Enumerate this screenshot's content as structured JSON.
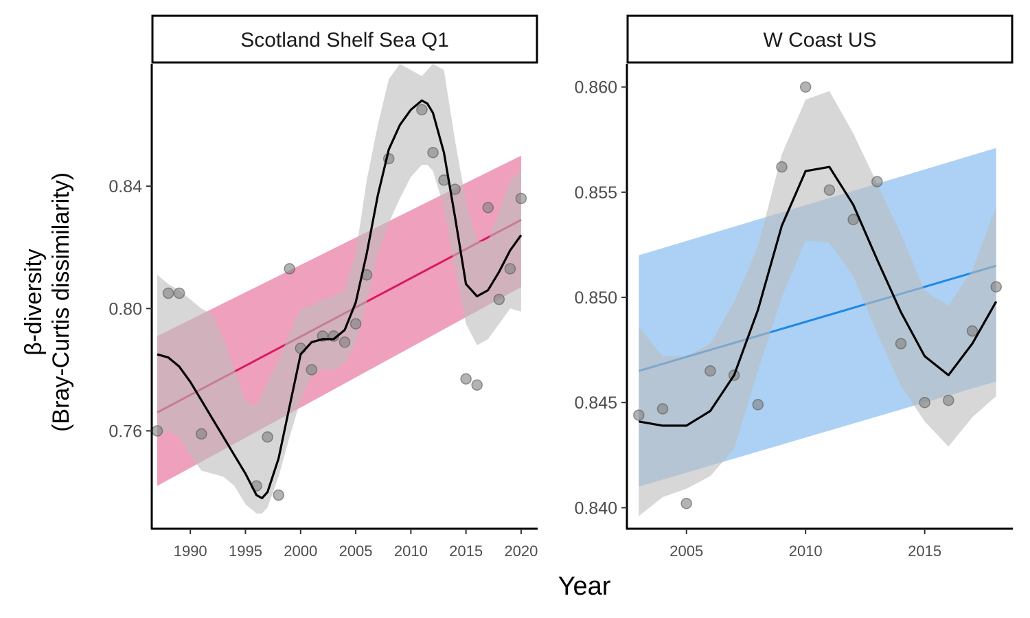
{
  "figure": {
    "xlabel": "Year",
    "ylabel_line1": "β-diversity",
    "ylabel_line2": "(Bray-Curtis dissimilarity)"
  },
  "chart_data": [
    {
      "type": "scatter",
      "facet": "Scotland Shelf Sea Q1",
      "xlim": [
        1986.5,
        2021.5
      ],
      "ylim": [
        0.728,
        0.88
      ],
      "xticks": [
        1990,
        1995,
        2000,
        2005,
        2010,
        2015,
        2020
      ],
      "yticks": [
        0.76,
        0.8,
        0.84
      ],
      "ytick_labels": [
        "0.76",
        "0.80",
        "0.84"
      ],
      "colors": {
        "linear_fit": "#d81b60",
        "linear_band": "#ec8fb0",
        "smooth_band": "#bdbdbd",
        "points": "#808080"
      },
      "points": [
        [
          1987,
          0.76
        ],
        [
          1988,
          0.805
        ],
        [
          1989,
          0.805
        ],
        [
          1991,
          0.759
        ],
        [
          1996,
          0.742
        ],
        [
          1997,
          0.758
        ],
        [
          1998,
          0.739
        ],
        [
          1999,
          0.813
        ],
        [
          2000,
          0.787
        ],
        [
          2001,
          0.78
        ],
        [
          2002,
          0.791
        ],
        [
          2003,
          0.791
        ],
        [
          2004,
          0.789
        ],
        [
          2005,
          0.795
        ],
        [
          2006,
          0.811
        ],
        [
          2008,
          0.849
        ],
        [
          2011,
          0.865
        ],
        [
          2012,
          0.851
        ],
        [
          2013,
          0.842
        ],
        [
          2014,
          0.839
        ],
        [
          2015,
          0.777
        ],
        [
          2016,
          0.775
        ],
        [
          2017,
          0.833
        ],
        [
          2018,
          0.803
        ],
        [
          2019,
          0.813
        ],
        [
          2020,
          0.836
        ]
      ],
      "linear_fit": {
        "x": [
          1987,
          2020
        ],
        "y": [
          0.766,
          0.829
        ],
        "lower": [
          0.742,
          0.807
        ],
        "upper": [
          0.791,
          0.85
        ]
      },
      "smooth": {
        "x": [
          1987,
          1988,
          1989,
          1990,
          1991,
          1992,
          1993,
          1994,
          1995,
          1996,
          1996.5,
          1997,
          1998,
          1999,
          2000,
          2001,
          2002,
          2003,
          2004,
          2005,
          2006,
          2007,
          2008,
          2009,
          2010,
          2011,
          2011.5,
          2012,
          2013,
          2014,
          2015,
          2016,
          2017,
          2018,
          2019,
          2020
        ],
        "y": [
          0.785,
          0.784,
          0.781,
          0.776,
          0.77,
          0.764,
          0.758,
          0.752,
          0.746,
          0.739,
          0.738,
          0.74,
          0.751,
          0.768,
          0.785,
          0.789,
          0.79,
          0.79,
          0.793,
          0.802,
          0.818,
          0.837,
          0.852,
          0.86,
          0.865,
          0.868,
          0.867,
          0.864,
          0.851,
          0.83,
          0.808,
          0.804,
          0.806,
          0.812,
          0.819,
          0.824
        ],
        "lower": [
          0.758,
          0.76,
          0.758,
          0.752,
          0.747,
          0.746,
          0.745,
          0.742,
          0.736,
          0.733,
          0.733,
          0.735,
          0.745,
          0.758,
          0.77,
          0.778,
          0.78,
          0.78,
          0.782,
          0.789,
          0.802,
          0.818,
          0.828,
          0.836,
          0.843,
          0.847,
          0.847,
          0.845,
          0.833,
          0.813,
          0.795,
          0.788,
          0.79,
          0.795,
          0.8,
          0.799
        ],
        "upper": [
          0.811,
          0.808,
          0.806,
          0.803,
          0.8,
          0.798,
          0.79,
          0.78,
          0.77,
          0.768,
          0.772,
          0.776,
          0.783,
          0.792,
          0.8,
          0.801,
          0.803,
          0.804,
          0.806,
          0.818,
          0.842,
          0.86,
          0.875,
          0.88,
          0.878,
          0.876,
          0.878,
          0.88,
          0.878,
          0.855,
          0.835,
          0.822,
          0.822,
          0.832,
          0.842,
          0.845
        ]
      }
    },
    {
      "type": "scatter",
      "facet": "W Coast US",
      "xlim": [
        2002.5,
        2018.7
      ],
      "ylim": [
        0.839,
        0.8611
      ],
      "xticks": [
        2005,
        2010,
        2015
      ],
      "yticks": [
        0.84,
        0.845,
        0.85,
        0.855,
        0.86
      ],
      "ytick_labels": [
        "0.840",
        "0.845",
        "0.850",
        "0.855",
        "0.860"
      ],
      "colors": {
        "linear_fit": "#1e88e5",
        "linear_band": "#9dc9f3",
        "smooth_band": "#bdbdbd",
        "points": "#808080"
      },
      "points": [
        [
          2003,
          0.8444
        ],
        [
          2004,
          0.8447
        ],
        [
          2005,
          0.8402
        ],
        [
          2006,
          0.8465
        ],
        [
          2007,
          0.8463
        ],
        [
          2008,
          0.8449
        ],
        [
          2009,
          0.8562
        ],
        [
          2010,
          0.86
        ],
        [
          2011,
          0.8551
        ],
        [
          2012,
          0.8537
        ],
        [
          2013,
          0.8555
        ],
        [
          2014,
          0.8478
        ],
        [
          2015,
          0.845
        ],
        [
          2016,
          0.8451
        ],
        [
          2017,
          0.8484
        ],
        [
          2018,
          0.8505
        ]
      ],
      "linear_fit": {
        "x": [
          2003,
          2018
        ],
        "y": [
          0.8465,
          0.8515
        ],
        "lower": [
          0.841,
          0.846
        ],
        "upper": [
          0.852,
          0.8571
        ]
      },
      "smooth": {
        "x": [
          2003,
          2004,
          2005,
          2006,
          2007,
          2008,
          2009,
          2010,
          2011,
          2012,
          2013,
          2014,
          2015,
          2016,
          2017,
          2018
        ],
        "y": [
          0.8441,
          0.8439,
          0.8439,
          0.8446,
          0.8463,
          0.8494,
          0.8534,
          0.856,
          0.8562,
          0.8544,
          0.8518,
          0.8493,
          0.8472,
          0.8463,
          0.8478,
          0.8498
        ],
        "lower": [
          0.8396,
          0.8405,
          0.8409,
          0.8415,
          0.8428,
          0.8465,
          0.85,
          0.8527,
          0.8526,
          0.851,
          0.8483,
          0.8458,
          0.8441,
          0.8429,
          0.8443,
          0.8453
        ],
        "upper": [
          0.8486,
          0.8472,
          0.8472,
          0.8478,
          0.8498,
          0.8524,
          0.8568,
          0.8594,
          0.8598,
          0.8578,
          0.8554,
          0.853,
          0.8503,
          0.8496,
          0.8513,
          0.8543
        ]
      }
    }
  ]
}
